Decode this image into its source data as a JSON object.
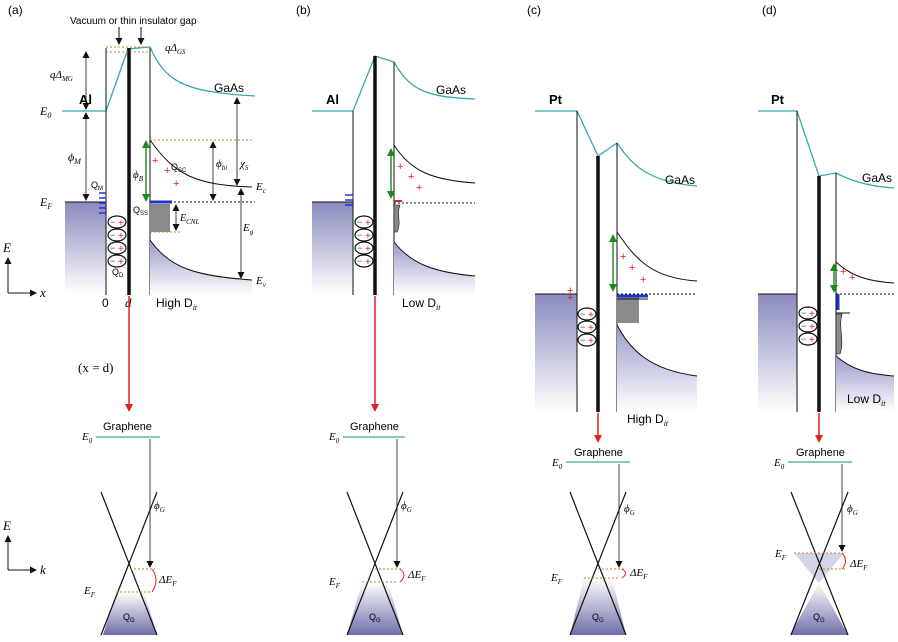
{
  "panels": [
    {
      "label": "(a)",
      "metal": "Al",
      "semiconductor": "GaAs",
      "caption": "High D",
      "caption_sub": "it"
    },
    {
      "label": "(b)",
      "metal": "Al",
      "semiconductor": "GaAs",
      "caption": "Low D",
      "caption_sub": "it"
    },
    {
      "label": "(c)",
      "metal": "Pt",
      "semiconductor": "GaAs",
      "caption": "High D",
      "caption_sub": "it"
    },
    {
      "label": "(d)",
      "metal": "Pt",
      "semiconductor": "GaAs",
      "caption": "Low D",
      "caption_sub": "it"
    }
  ],
  "gap_label": "Vacuum or thin insulator gap",
  "graphene_label": "Graphene",
  "symbols": {
    "E0": "E",
    "E0_sub": "0",
    "EF": "E",
    "EF_sub": "F",
    "phiM": "ϕ",
    "phiM_sub": "M",
    "phiB": "ϕ",
    "phiB_sub": "B",
    "phibi": "ϕ",
    "phibi_sub": "bi",
    "chiS": "χ",
    "chiS_sub": "S",
    "Eg": "E",
    "Eg_sub": "g",
    "Ec": "E",
    "Ec_sub": "c",
    "Ev": "E",
    "Ev_sub": "v",
    "ECNL": "E",
    "ECNL_sub": "CNL",
    "QM": "Q",
    "QM_sub": "M",
    "QSC": "Q",
    "QSC_sub": "SC",
    "QSS": "Q",
    "QSS_sub": "SS",
    "QD": "Q",
    "QD_sub": "D",
    "qDMG": "qΔ",
    "qDMG_sub": "MG",
    "qDGS": "qΔ",
    "qDGS_sub": "GS",
    "phiG": "ϕ",
    "phiG_sub": "G",
    "dEF": "ΔE",
    "dEF_sub": "F",
    "QG": "Q",
    "QG_sub": "G",
    "x0": "0",
    "xd": "d",
    "xeq": "(x = d)",
    "axisE": "E",
    "axisX": "x",
    "axisK": "k"
  },
  "colors": {
    "vacuum_level": "#3aa9a9",
    "band": "#111111",
    "metal_fill": "#8c8cc0",
    "arrow_down": "#e02020",
    "phiB_arrow": "#1a8a1a",
    "plus": "#e02020",
    "dipole_blue": "#2233cc",
    "states_gray": "#8a8a8a",
    "dotted_orange": "#c8862a"
  }
}
